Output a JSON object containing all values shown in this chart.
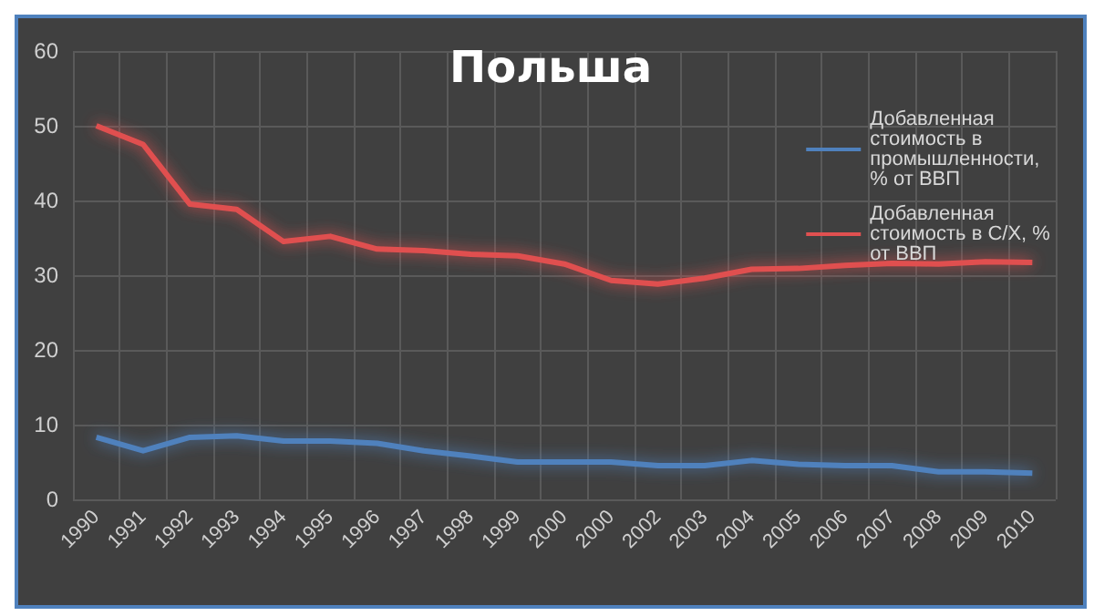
{
  "chart_data": {
    "type": "line",
    "title": "Польша",
    "categories": [
      "1990",
      "1991",
      "1992",
      "1993",
      "1994",
      "1995",
      "1996",
      "1997",
      "1998",
      "1999",
      "2000",
      "2000",
      "2002",
      "2003",
      "2004",
      "2005",
      "2006",
      "2007",
      "2008",
      "2009",
      "2010"
    ],
    "series": [
      {
        "name": "Добавленная стоимость в промышленности, % от ВВП",
        "color": "#4f81bd",
        "values": [
          8.3,
          6.5,
          8.3,
          8.5,
          7.8,
          7.8,
          7.5,
          6.5,
          5.8,
          5.0,
          5.0,
          5.0,
          4.5,
          4.5,
          5.2,
          4.7,
          4.5,
          4.5,
          3.7,
          3.7,
          3.5
        ]
      },
      {
        "name": "Добавленная стоимость в С/Х, % от ВВП",
        "color": "#e05050",
        "values": [
          50,
          47.5,
          39.5,
          38.8,
          34.5,
          35.2,
          33.5,
          33.3,
          32.8,
          32.6,
          31.5,
          29.3,
          28.8,
          29.6,
          30.8,
          30.9,
          31.3,
          31.6,
          31.5,
          31.8,
          31.7
        ]
      }
    ],
    "ylim": [
      0,
      60
    ],
    "yticks": [
      0,
      10,
      20,
      30,
      40,
      50,
      60
    ],
    "grid": true,
    "legend": "top right",
    "marker": "none",
    "line_style": "solid"
  }
}
